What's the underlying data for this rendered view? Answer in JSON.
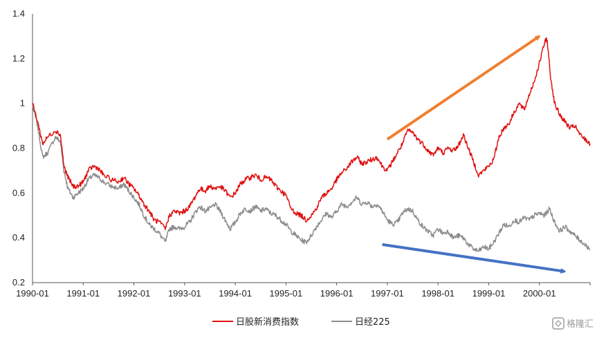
{
  "chart_data": {
    "type": "line",
    "title": "",
    "xlabel": "",
    "ylabel": "",
    "ylim": [
      0.2,
      1.4
    ],
    "yticks": [
      "0.2",
      "0.4",
      "0.6",
      "0.8",
      "1",
      "1.2",
      "1.4"
    ],
    "xlim": [
      1990.0,
      2001.0
    ],
    "xticks": [
      "1990-01",
      "1991-01",
      "1992-01",
      "1993-01",
      "1994-01",
      "1995-01",
      "1996-01",
      "1997-01",
      "1998-01",
      "1999-01",
      "2000-01"
    ],
    "grid": false,
    "legend_position": "bottom-center",
    "series": [
      {
        "name": "日股新消费指数",
        "color": "#e01010",
        "points": [
          [
            1990.0,
            1.0
          ],
          [
            1990.1,
            0.92
          ],
          [
            1990.2,
            0.82
          ],
          [
            1990.3,
            0.85
          ],
          [
            1990.45,
            0.88
          ],
          [
            1990.55,
            0.86
          ],
          [
            1990.62,
            0.72
          ],
          [
            1990.7,
            0.67
          ],
          [
            1990.8,
            0.63
          ],
          [
            1990.9,
            0.63
          ],
          [
            1991.0,
            0.65
          ],
          [
            1991.1,
            0.7
          ],
          [
            1991.2,
            0.72
          ],
          [
            1991.3,
            0.71
          ],
          [
            1991.4,
            0.68
          ],
          [
            1991.55,
            0.66
          ],
          [
            1991.7,
            0.65
          ],
          [
            1991.8,
            0.67
          ],
          [
            1991.9,
            0.64
          ],
          [
            1992.0,
            0.62
          ],
          [
            1992.1,
            0.59
          ],
          [
            1992.2,
            0.55
          ],
          [
            1992.3,
            0.52
          ],
          [
            1992.4,
            0.48
          ],
          [
            1992.5,
            0.47
          ],
          [
            1992.62,
            0.44
          ],
          [
            1992.7,
            0.5
          ],
          [
            1992.8,
            0.52
          ],
          [
            1992.9,
            0.51
          ],
          [
            1993.0,
            0.52
          ],
          [
            1993.1,
            0.54
          ],
          [
            1993.2,
            0.58
          ],
          [
            1993.3,
            0.62
          ],
          [
            1993.4,
            0.61
          ],
          [
            1993.5,
            0.63
          ],
          [
            1993.6,
            0.62
          ],
          [
            1993.7,
            0.63
          ],
          [
            1993.8,
            0.61
          ],
          [
            1993.9,
            0.58
          ],
          [
            1994.0,
            0.6
          ],
          [
            1994.1,
            0.64
          ],
          [
            1994.2,
            0.66
          ],
          [
            1994.3,
            0.67
          ],
          [
            1994.4,
            0.68
          ],
          [
            1994.5,
            0.66
          ],
          [
            1994.6,
            0.67
          ],
          [
            1994.7,
            0.66
          ],
          [
            1994.8,
            0.63
          ],
          [
            1994.9,
            0.61
          ],
          [
            1995.0,
            0.59
          ],
          [
            1995.1,
            0.53
          ],
          [
            1995.2,
            0.51
          ],
          [
            1995.3,
            0.5
          ],
          [
            1995.4,
            0.48
          ],
          [
            1995.5,
            0.5
          ],
          [
            1995.6,
            0.53
          ],
          [
            1995.7,
            0.58
          ],
          [
            1995.8,
            0.6
          ],
          [
            1995.9,
            0.62
          ],
          [
            1996.0,
            0.66
          ],
          [
            1996.1,
            0.69
          ],
          [
            1996.2,
            0.71
          ],
          [
            1996.3,
            0.74
          ],
          [
            1996.4,
            0.76
          ],
          [
            1996.5,
            0.73
          ],
          [
            1996.6,
            0.74
          ],
          [
            1996.7,
            0.75
          ],
          [
            1996.8,
            0.76
          ],
          [
            1996.9,
            0.72
          ],
          [
            1997.0,
            0.7
          ],
          [
            1997.1,
            0.74
          ],
          [
            1997.2,
            0.78
          ],
          [
            1997.3,
            0.82
          ],
          [
            1997.4,
            0.88
          ],
          [
            1997.5,
            0.87
          ],
          [
            1997.6,
            0.84
          ],
          [
            1997.7,
            0.82
          ],
          [
            1997.8,
            0.79
          ],
          [
            1997.9,
            0.77
          ],
          [
            1998.0,
            0.8
          ],
          [
            1998.1,
            0.78
          ],
          [
            1998.2,
            0.8
          ],
          [
            1998.3,
            0.79
          ],
          [
            1998.4,
            0.81
          ],
          [
            1998.5,
            0.86
          ],
          [
            1998.6,
            0.8
          ],
          [
            1998.7,
            0.74
          ],
          [
            1998.8,
            0.68
          ],
          [
            1998.9,
            0.7
          ],
          [
            1999.0,
            0.72
          ],
          [
            1999.1,
            0.75
          ],
          [
            1999.2,
            0.85
          ],
          [
            1999.3,
            0.89
          ],
          [
            1999.4,
            0.91
          ],
          [
            1999.5,
            0.96
          ],
          [
            1999.6,
            1.0
          ],
          [
            1999.7,
            0.97
          ],
          [
            1999.8,
            1.04
          ],
          [
            1999.9,
            1.1
          ],
          [
            2000.0,
            1.18
          ],
          [
            2000.1,
            1.27
          ],
          [
            2000.15,
            1.29
          ],
          [
            2000.22,
            1.12
          ],
          [
            2000.3,
            1.0
          ],
          [
            2000.4,
            0.95
          ],
          [
            2000.5,
            0.92
          ],
          [
            2000.6,
            0.89
          ],
          [
            2000.7,
            0.9
          ],
          [
            2000.8,
            0.86
          ],
          [
            2000.9,
            0.84
          ],
          [
            2001.0,
            0.82
          ]
        ]
      },
      {
        "name": "日经225",
        "color": "#8c8c8c",
        "points": [
          [
            1990.0,
            0.99
          ],
          [
            1990.1,
            0.9
          ],
          [
            1990.2,
            0.76
          ],
          [
            1990.3,
            0.78
          ],
          [
            1990.45,
            0.85
          ],
          [
            1990.55,
            0.83
          ],
          [
            1990.62,
            0.7
          ],
          [
            1990.7,
            0.62
          ],
          [
            1990.8,
            0.58
          ],
          [
            1990.9,
            0.6
          ],
          [
            1991.0,
            0.62
          ],
          [
            1991.1,
            0.66
          ],
          [
            1991.2,
            0.68
          ],
          [
            1991.3,
            0.67
          ],
          [
            1991.4,
            0.65
          ],
          [
            1991.55,
            0.63
          ],
          [
            1991.7,
            0.62
          ],
          [
            1991.8,
            0.64
          ],
          [
            1991.9,
            0.61
          ],
          [
            1992.0,
            0.58
          ],
          [
            1992.1,
            0.55
          ],
          [
            1992.2,
            0.5
          ],
          [
            1992.3,
            0.46
          ],
          [
            1992.4,
            0.44
          ],
          [
            1992.5,
            0.42
          ],
          [
            1992.62,
            0.38
          ],
          [
            1992.7,
            0.44
          ],
          [
            1992.8,
            0.45
          ],
          [
            1992.9,
            0.44
          ],
          [
            1993.0,
            0.45
          ],
          [
            1993.1,
            0.47
          ],
          [
            1993.2,
            0.51
          ],
          [
            1993.3,
            0.54
          ],
          [
            1993.4,
            0.52
          ],
          [
            1993.5,
            0.53
          ],
          [
            1993.6,
            0.55
          ],
          [
            1993.7,
            0.52
          ],
          [
            1993.8,
            0.48
          ],
          [
            1993.9,
            0.44
          ],
          [
            1994.0,
            0.47
          ],
          [
            1994.1,
            0.51
          ],
          [
            1994.2,
            0.53
          ],
          [
            1994.3,
            0.52
          ],
          [
            1994.4,
            0.54
          ],
          [
            1994.5,
            0.52
          ],
          [
            1994.6,
            0.53
          ],
          [
            1994.7,
            0.51
          ],
          [
            1994.8,
            0.5
          ],
          [
            1994.9,
            0.48
          ],
          [
            1995.0,
            0.46
          ],
          [
            1995.1,
            0.43
          ],
          [
            1995.2,
            0.41
          ],
          [
            1995.3,
            0.39
          ],
          [
            1995.4,
            0.38
          ],
          [
            1995.5,
            0.41
          ],
          [
            1995.6,
            0.45
          ],
          [
            1995.7,
            0.48
          ],
          [
            1995.8,
            0.51
          ],
          [
            1995.9,
            0.49
          ],
          [
            1996.0,
            0.52
          ],
          [
            1996.1,
            0.55
          ],
          [
            1996.2,
            0.54
          ],
          [
            1996.3,
            0.56
          ],
          [
            1996.4,
            0.58
          ],
          [
            1996.5,
            0.55
          ],
          [
            1996.6,
            0.56
          ],
          [
            1996.7,
            0.54
          ],
          [
            1996.8,
            0.55
          ],
          [
            1996.9,
            0.52
          ],
          [
            1997.0,
            0.48
          ],
          [
            1997.1,
            0.46
          ],
          [
            1997.2,
            0.47
          ],
          [
            1997.3,
            0.51
          ],
          [
            1997.4,
            0.53
          ],
          [
            1997.5,
            0.52
          ],
          [
            1997.6,
            0.48
          ],
          [
            1997.7,
            0.45
          ],
          [
            1997.8,
            0.43
          ],
          [
            1997.9,
            0.41
          ],
          [
            1998.0,
            0.44
          ],
          [
            1998.1,
            0.42
          ],
          [
            1998.2,
            0.43
          ],
          [
            1998.3,
            0.4
          ],
          [
            1998.4,
            0.41
          ],
          [
            1998.5,
            0.4
          ],
          [
            1998.6,
            0.37
          ],
          [
            1998.7,
            0.35
          ],
          [
            1998.8,
            0.34
          ],
          [
            1998.9,
            0.36
          ],
          [
            1999.0,
            0.35
          ],
          [
            1999.1,
            0.38
          ],
          [
            1999.2,
            0.42
          ],
          [
            1999.3,
            0.46
          ],
          [
            1999.4,
            0.45
          ],
          [
            1999.5,
            0.48
          ],
          [
            1999.6,
            0.47
          ],
          [
            1999.7,
            0.49
          ],
          [
            1999.8,
            0.48
          ],
          [
            1999.9,
            0.5
          ],
          [
            2000.0,
            0.51
          ],
          [
            2000.1,
            0.5
          ],
          [
            2000.2,
            0.53
          ],
          [
            2000.3,
            0.47
          ],
          [
            2000.4,
            0.43
          ],
          [
            2000.5,
            0.45
          ],
          [
            2000.6,
            0.43
          ],
          [
            2000.7,
            0.41
          ],
          [
            2000.8,
            0.39
          ],
          [
            2000.9,
            0.37
          ],
          [
            2001.0,
            0.35
          ]
        ]
      }
    ],
    "annotations": [
      {
        "type": "arrow",
        "color": "#f08030",
        "from": [
          1997.0,
          0.84
        ],
        "to": [
          2000.0,
          1.3
        ]
      },
      {
        "type": "arrow",
        "color": "#4472c4",
        "from": [
          1996.9,
          0.37
        ],
        "to": [
          2000.5,
          0.25
        ]
      }
    ]
  },
  "watermark": {
    "icon": "gelonghui-logo-icon",
    "text": "格隆汇"
  }
}
